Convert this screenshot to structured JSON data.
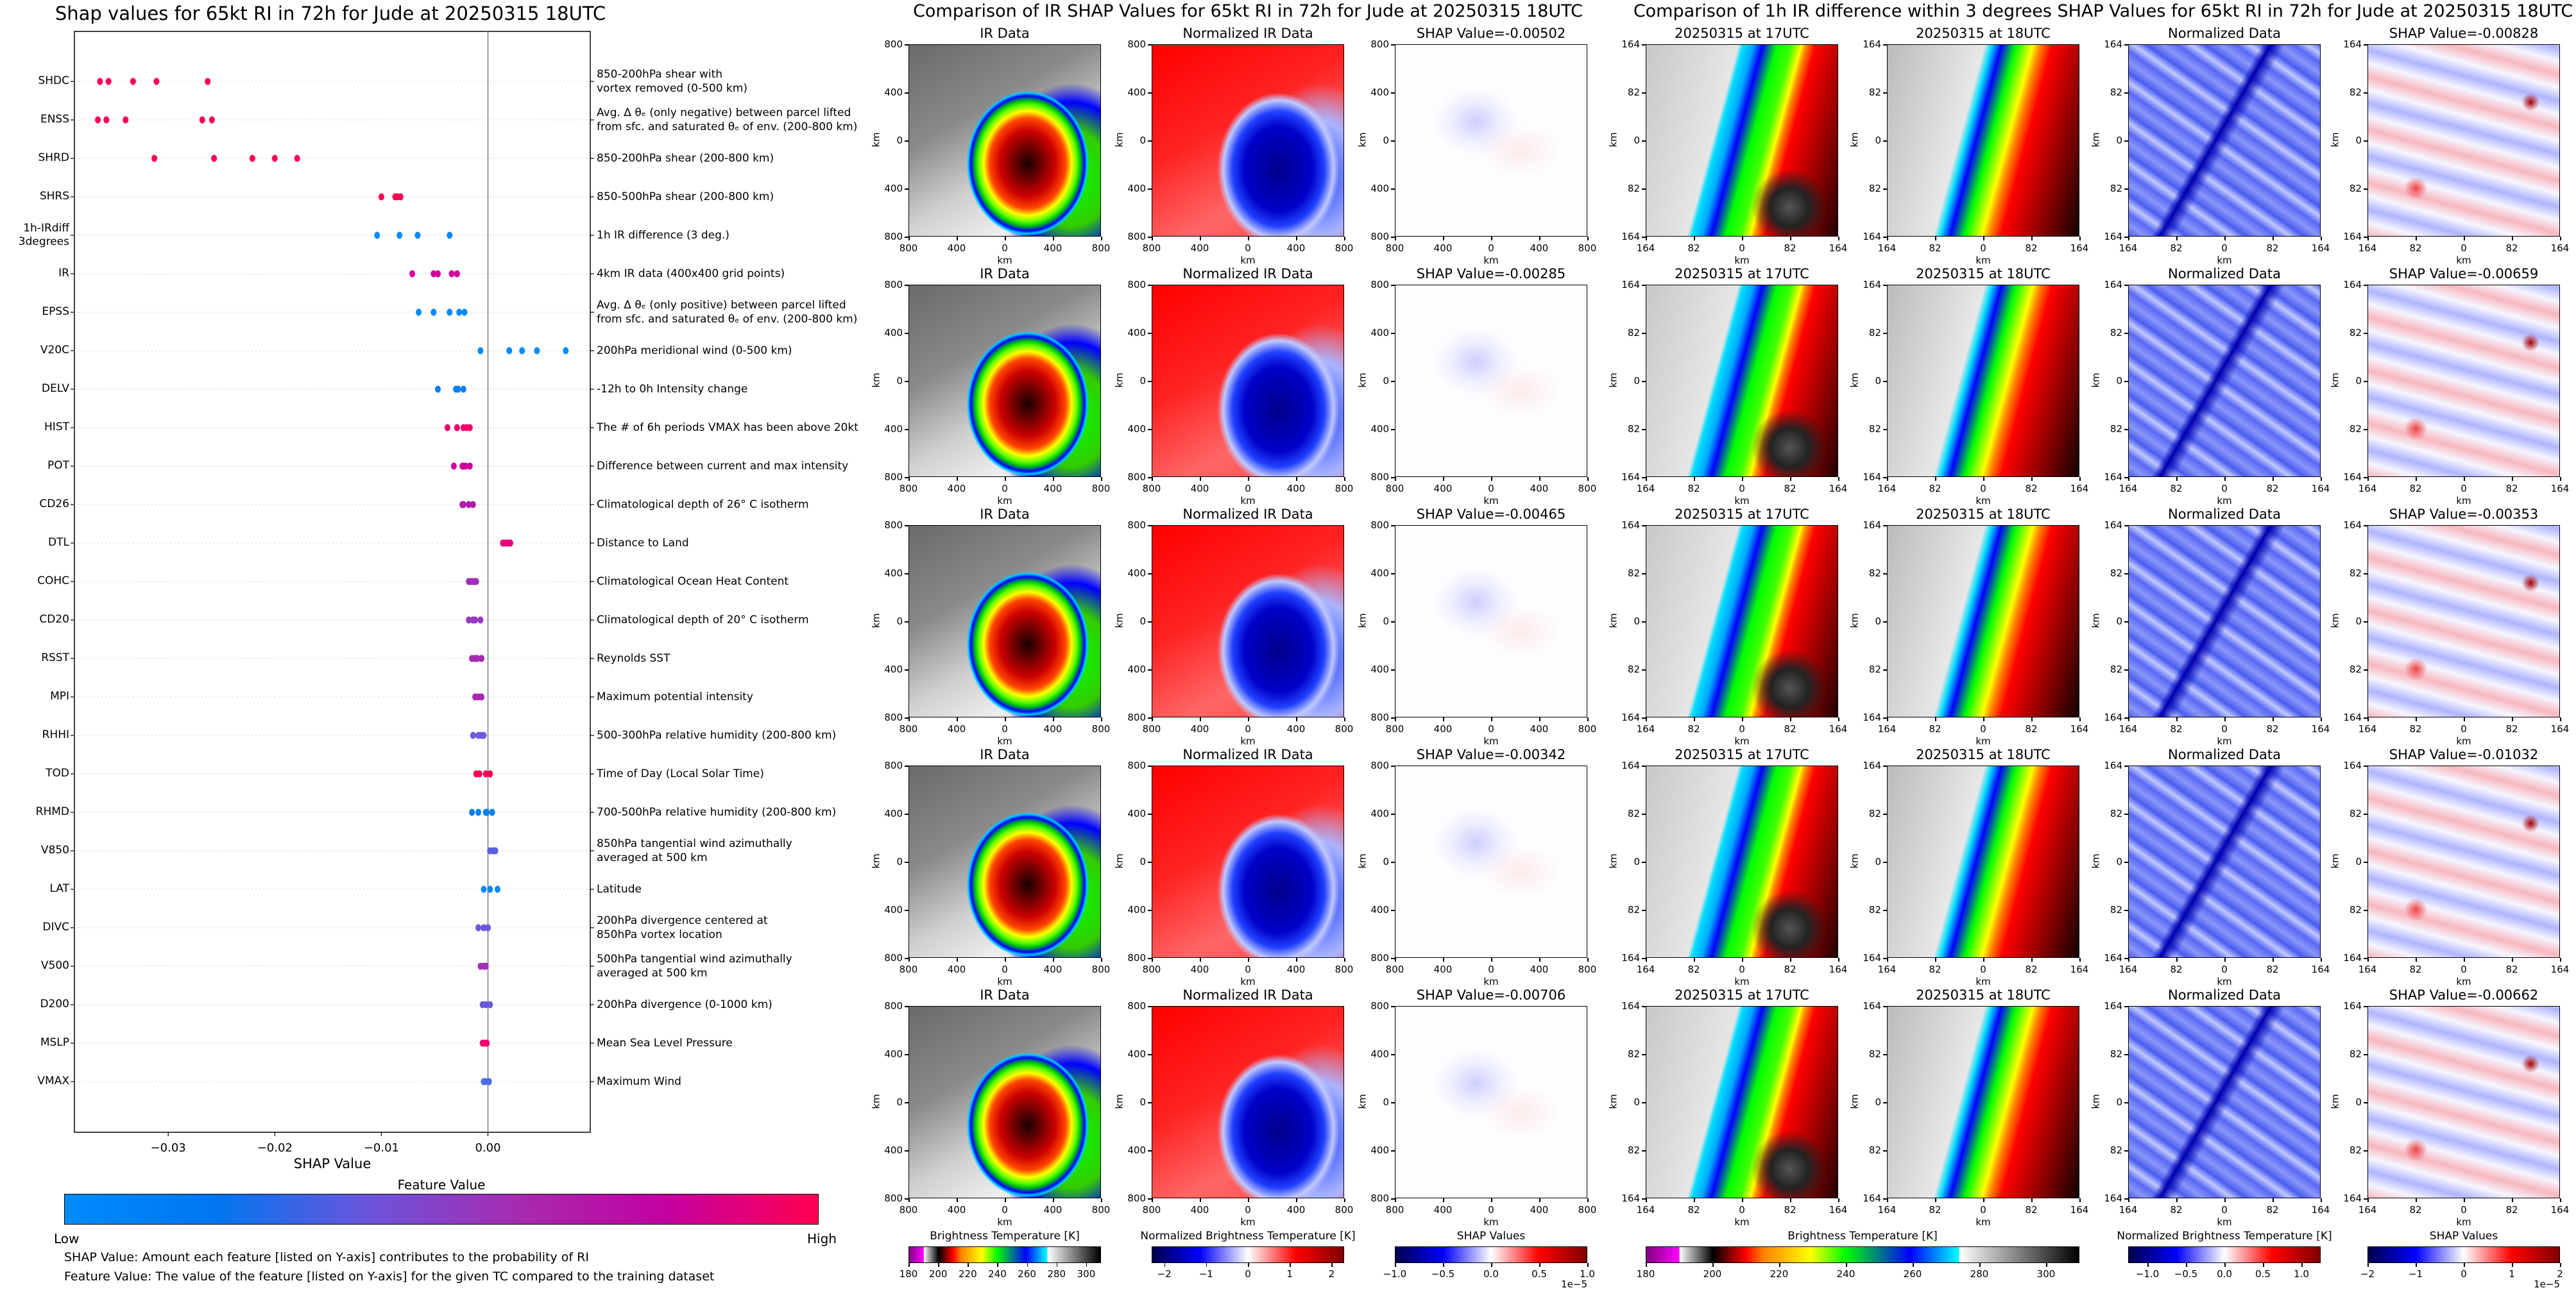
{
  "left_chart": {
    "colorbar": {
      "label": "Feature Value",
      "low": "Low",
      "high": "High",
      "colors": [
        "#008bfb",
        "#0076f0",
        "#6a55dc",
        "#a62bb0",
        "#c400a0",
        "#ff0052"
      ]
    },
    "notes": [
      "SHAP Value: Amount each feature [listed on Y-axis] contributes to the probability of RI",
      "Feature Value: The value of the feature [listed on Y-axis] for the given TC compared to the training dataset"
    ]
  },
  "chart_data": [
    {
      "type": "scatter",
      "title": "Shap values for 65kt RI in 72h for Jude at 20250315 18UTC",
      "xlabel": "SHAP Value",
      "xlim": [
        -0.0388,
        0.0096
      ],
      "xticks": [
        -0.03,
        -0.02,
        -0.01,
        0.0
      ],
      "xtick_labels": [
        "−0.03",
        "−0.02",
        "−0.01",
        "0.00"
      ],
      "grid": "dotted horizontal",
      "features": [
        {
          "name": "SHDC",
          "description": "850-200hPa shear with\nvortex removed (0-500 km)",
          "color": "#ff0052",
          "values": [
            -0.0364,
            -0.0356,
            -0.0333,
            -0.0311,
            -0.0263
          ]
        },
        {
          "name": "ENSS",
          "description": "Avg. Δ θₑ (only negative) between parcel lifted\nfrom sfc. and saturated θₑ of env. (200-800 km)",
          "color": "#ff0052",
          "values": [
            -0.0366,
            -0.0358,
            -0.034,
            -0.0268,
            -0.0259
          ]
        },
        {
          "name": "SHRD",
          "description": "850-200hPa shear (200-800 km)",
          "color": "#ff0052",
          "values": [
            -0.0313,
            -0.0257,
            -0.0221,
            -0.02,
            -0.0179
          ]
        },
        {
          "name": "SHRS",
          "description": "850-500hPa shear (200-800 km)",
          "color": "#ff0052",
          "values": [
            -0.01,
            -0.0087,
            -0.0085,
            -0.0082
          ]
        },
        {
          "name": "1h-IRdiff\n3degrees",
          "description": "1h IR difference (3 deg.)",
          "color": "#008bfb",
          "values": [
            -0.0104,
            -0.0083,
            -0.0066,
            -0.0036
          ]
        },
        {
          "name": "IR",
          "description": "4km IR data (400x400 grid points)",
          "color": "#d4009b",
          "values": [
            -0.0071,
            -0.0051,
            -0.0047,
            -0.0034,
            -0.0029
          ]
        },
        {
          "name": "EPSS",
          "description": "Avg. Δ θₑ (only positive) between parcel lifted\nfrom sfc. and saturated θₑ of env. (200-800 km)",
          "color": "#008bfb",
          "values": [
            -0.0065,
            -0.0051,
            -0.0036,
            -0.0027,
            -0.0022
          ]
        },
        {
          "name": "V20C",
          "description": "200hPa meridional wind (0-500 km)",
          "color": "#008bfb",
          "values": [
            -0.0007,
            0.002,
            0.0032,
            0.0046,
            0.0073
          ]
        },
        {
          "name": "DELV",
          "description": "-12h to 0h Intensity change",
          "color": "#0a80f4",
          "values": [
            -0.0047,
            -0.003,
            -0.0028,
            -0.0023
          ]
        },
        {
          "name": "HIST",
          "description": "The # of 6h periods VMAX has been above 20kt",
          "color": "#f0006a",
          "values": [
            -0.0038,
            -0.0029,
            -0.0023,
            -0.002,
            -0.0017
          ]
        },
        {
          "name": "POT",
          "description": "Difference between current and max intensity",
          "color": "#cf00a0",
          "values": [
            -0.0032,
            -0.0024,
            -0.0023,
            -0.0021,
            -0.0017
          ]
        },
        {
          "name": "CD26",
          "description": "Climatological depth of 26° C isotherm",
          "color": "#b418b0",
          "values": [
            -0.0024,
            -0.0023,
            -0.0018,
            -0.0014
          ]
        },
        {
          "name": "DTL",
          "description": "Distance to Land",
          "color": "#e6007f",
          "values": [
            0.0014,
            0.0016,
            0.0018,
            0.002,
            0.0021
          ]
        },
        {
          "name": "COHC",
          "description": "Climatological Ocean Heat Content",
          "color": "#a030b8",
          "values": [
            -0.0018,
            -0.0016,
            -0.0014,
            -0.0012,
            -0.0011
          ]
        },
        {
          "name": "CD20",
          "description": "Climatological depth of 20° C isotherm",
          "color": "#9a38c0",
          "values": [
            -0.0018,
            -0.0014,
            -0.0012,
            -0.0007
          ]
        },
        {
          "name": "RSST",
          "description": "Reynolds SST",
          "color": "#a828b4",
          "values": [
            -0.0015,
            -0.0012,
            -0.001,
            -0.0006
          ]
        },
        {
          "name": "MPI",
          "description": "Maximum potential intensity",
          "color": "#a828b4",
          "values": [
            -0.0012,
            -0.0009,
            -0.0006
          ]
        },
        {
          "name": "RHHI",
          "description": "500-300hPa relative humidity (200-800 km)",
          "color": "#7058d8",
          "values": [
            -0.0014,
            -0.0009,
            -0.0006,
            -0.0004
          ]
        },
        {
          "name": "TOD",
          "description": "Time of Day (Local Solar Time)",
          "color": "#ff0052",
          "values": [
            -0.0011,
            -0.0008,
            -0.0002,
            0.0002
          ]
        },
        {
          "name": "RHMD",
          "description": "700-500hPa relative humidity (200-800 km)",
          "color": "#0a80f4",
          "values": [
            -0.0015,
            -0.0009,
            -0.0002,
            -0.0001,
            0.0004
          ]
        },
        {
          "name": "V850",
          "description": "850hPa tangential wind azimuthally\naveraged at 500 km",
          "color": "#5a60e0",
          "values": [
            0.0002,
            0.0005,
            0.0007
          ]
        },
        {
          "name": "LAT",
          "description": "Latitude",
          "color": "#0a88f8",
          "values": [
            -0.0004,
            0.0002,
            0.0009
          ]
        },
        {
          "name": "DIVC",
          "description": "200hPa divergence centered at\n850hPa vortex location",
          "color": "#6858dc",
          "values": [
            -0.0009,
            -0.0004,
            0.0
          ]
        },
        {
          "name": "V500",
          "description": "500hPa tangential wind azimuthally\naveraged at 500 km",
          "color": "#a030b8",
          "values": [
            -0.0007,
            -0.0004,
            -0.0002
          ]
        },
        {
          "name": "D200",
          "description": "200hPa divergence (0-1000 km)",
          "color": "#6858dc",
          "values": [
            -0.0005,
            -0.0002,
            0.0002
          ]
        },
        {
          "name": "MSLP",
          "description": "Mean Sea Level Pressure",
          "color": "#f00070",
          "values": [
            -0.0005,
            -0.0003,
            -0.0001
          ]
        },
        {
          "name": "VMAX",
          "description": "Maximum Wind",
          "color": "#4a6ae6",
          "values": [
            -0.0004,
            -0.0002,
            0.0001
          ]
        }
      ]
    }
  ],
  "ir_comparison": {
    "title": "Comparison of IR SHAP Values for 65kt RI in 72h for Jude at 20250315 18UTC",
    "fixed_titles": [
      "IR Data",
      "Normalized IR Data"
    ],
    "shap_titles": [
      "SHAP Value=-0.00502",
      "SHAP Value=-0.00285",
      "SHAP Value=-0.00465",
      "SHAP Value=-0.00342",
      "SHAP Value=-0.00706"
    ],
    "axis_ticks": [
      "800",
      "400",
      "0",
      "400",
      "800"
    ],
    "axis_label": "km",
    "colorbars": [
      {
        "label": "Brightness Temperature [K]",
        "ticks": [
          "180",
          "200",
          "220",
          "240",
          "260",
          "280",
          "300"
        ],
        "range": [
          180,
          310
        ],
        "tick_values": [
          180,
          200,
          220,
          240,
          260,
          280,
          300
        ],
        "offset": ""
      },
      {
        "label": "Normalized Brightness Temperature [K]",
        "ticks": [
          "−2",
          "−1",
          "0",
          "1",
          "2"
        ],
        "range": [
          -2.3,
          2.3
        ],
        "tick_values": [
          -2,
          -1,
          0,
          1,
          2
        ],
        "offset": ""
      },
      {
        "label": "SHAP Values",
        "ticks": [
          "−1.0",
          "−0.5",
          "0.0",
          "0.5",
          "1.0"
        ],
        "range": [
          -1,
          1
        ],
        "tick_values": [
          -1,
          -0.5,
          0,
          0.5,
          1
        ],
        "offset": "1e−5"
      }
    ]
  },
  "irdiff_comparison": {
    "title": "Comparison of 1h IR difference within 3 degrees SHAP Values for 65kt RI in 72h for Jude at 20250315 18UTC",
    "fixed_titles": [
      "20250315 at 17UTC",
      "20250315 at 18UTC",
      "Normalized Data"
    ],
    "shap_titles": [
      "SHAP Value=-0.00828",
      "SHAP Value=-0.00659",
      "SHAP Value=-0.00353",
      "SHAP Value=-0.01032",
      "SHAP Value=-0.00662"
    ],
    "axis_ticks": [
      "164",
      "82",
      "0",
      "82",
      "164"
    ],
    "axis_label": "km",
    "colorbars": [
      {
        "label": "Brightness Temperature [K]",
        "ticks": [
          "180",
          "200",
          "220",
          "240",
          "260",
          "280",
          "300"
        ],
        "range": [
          180,
          310
        ],
        "tick_values": [
          180,
          200,
          220,
          240,
          260,
          280,
          300
        ],
        "offset": ""
      },
      {
        "label": "Normalized Brightness Temperature [K]",
        "ticks": [
          "−1.0",
          "−0.5",
          "0.0",
          "0.5",
          "1.0"
        ],
        "range": [
          -1.25,
          1.25
        ],
        "tick_values": [
          -1,
          -0.5,
          0,
          0.5,
          1
        ],
        "offset": ""
      },
      {
        "label": "SHAP Values",
        "ticks": [
          "−2",
          "−1",
          "0",
          "1",
          "2"
        ],
        "range": [
          -2,
          2
        ],
        "tick_values": [
          -2,
          -1,
          0,
          1,
          2
        ],
        "offset": "1e−5"
      }
    ]
  },
  "colormaps": {
    "brightness": "linear-gradient(90deg,#800080 0,#ff00ff 7.6%,#fff 7.7%,#000 15.4%,#f00 23%,#ff8000 27%,#ff0 38%,#0f0 46%,#00f 61%,#0ff 72.3%,#fff 72.4%,#000 100%)",
    "seismic": "linear-gradient(90deg,#00004c 0,#0000ff 25%,#ffffff 50%,#ff0000 75%,#800000 100%)"
  }
}
